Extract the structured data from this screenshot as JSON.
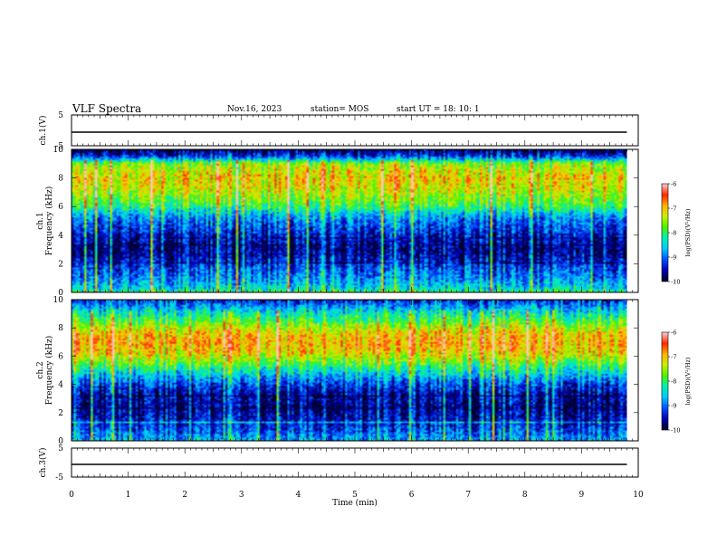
{
  "header": {
    "title": "VLF Spectra",
    "date": "Nov.16, 2023",
    "station": "station= MOS",
    "start": "start  UT  =    18: 10: 1"
  },
  "colors": {
    "spectrogram_scale": [
      "#00002a",
      "#0000b4",
      "#0050ff",
      "#00c8ff",
      "#00f0b4",
      "#50f000",
      "#c8f000",
      "#ffb400",
      "#ff2800",
      "#ffc8c8"
    ],
    "axes": "#000000"
  },
  "chart_data": [
    {
      "type": "line",
      "name": "ch.1 waveform",
      "ylabel": "ch.1(V)",
      "ylim": [
        -5,
        5
      ],
      "yticks": [
        "5",
        "-5"
      ],
      "xlim": [
        0,
        10
      ],
      "value": 0
    },
    {
      "type": "heatmap",
      "name": "ch.1 spectrogram",
      "ylabel": "ch.1\nFrequency (kHz)",
      "ylim": [
        0,
        10
      ],
      "yticks": [
        "0",
        "2",
        "4",
        "6",
        "8",
        "10"
      ],
      "xlim": [
        0,
        9.8
      ],
      "colorbar": {
        "label": "log(PSD)(V²/Hz)",
        "range": [
          -10,
          -6
        ],
        "ticks": [
          "-6",
          "-7",
          "-8",
          "-9",
          "-10"
        ]
      },
      "band_profile": {
        "freq_kHz": [
          0,
          0.5,
          1,
          1.5,
          2,
          2.5,
          3,
          3.5,
          4,
          4.5,
          5,
          5.5,
          6,
          6.5,
          7,
          7.5,
          8,
          8.5,
          9,
          9.5,
          10
        ],
        "log_psd": [
          -8.2,
          -8.6,
          -8.9,
          -9.1,
          -9.3,
          -9.6,
          -9.7,
          -9.6,
          -9.4,
          -9.2,
          -9.0,
          -8.6,
          -8.0,
          -7.7,
          -7.4,
          -7.2,
          -7.1,
          -7.3,
          -7.6,
          -9.2,
          -9.9
        ]
      }
    },
    {
      "type": "heatmap",
      "name": "ch.2 spectrogram",
      "ylabel": "ch.2\nFrequency (kHz)",
      "ylim": [
        0,
        10
      ],
      "yticks": [
        "0",
        "2",
        "4",
        "6",
        "8",
        "10"
      ],
      "xlim": [
        0,
        9.8
      ],
      "colorbar": {
        "label": "log(PSD)(V²/Hz)",
        "range": [
          -10,
          -6
        ],
        "ticks": [
          "-6",
          "-7",
          "-8",
          "-9",
          "-10"
        ]
      },
      "band_profile": {
        "freq_kHz": [
          0,
          0.5,
          1,
          1.5,
          2,
          2.5,
          3,
          3.5,
          4,
          4.5,
          5,
          5.5,
          6,
          6.5,
          7,
          7.5,
          8,
          8.5,
          9,
          9.5,
          10
        ],
        "log_psd": [
          -8.7,
          -9.0,
          -9.3,
          -9.5,
          -9.6,
          -9.7,
          -9.6,
          -9.5,
          -9.2,
          -8.8,
          -8.3,
          -7.8,
          -7.3,
          -7.0,
          -6.9,
          -7.0,
          -7.4,
          -7.9,
          -8.3,
          -8.8,
          -9.3
        ]
      }
    },
    {
      "type": "line",
      "name": "ch.3 waveform",
      "ylabel": "ch.3(V)",
      "ylim": [
        -5,
        5
      ],
      "yticks": [
        "5",
        "-5"
      ],
      "xlim": [
        0,
        10
      ],
      "xlabel": "Time  (min)",
      "xticks": [
        "0",
        "1",
        "2",
        "3",
        "4",
        "5",
        "6",
        "7",
        "8",
        "9",
        "10"
      ],
      "value": 0
    }
  ]
}
